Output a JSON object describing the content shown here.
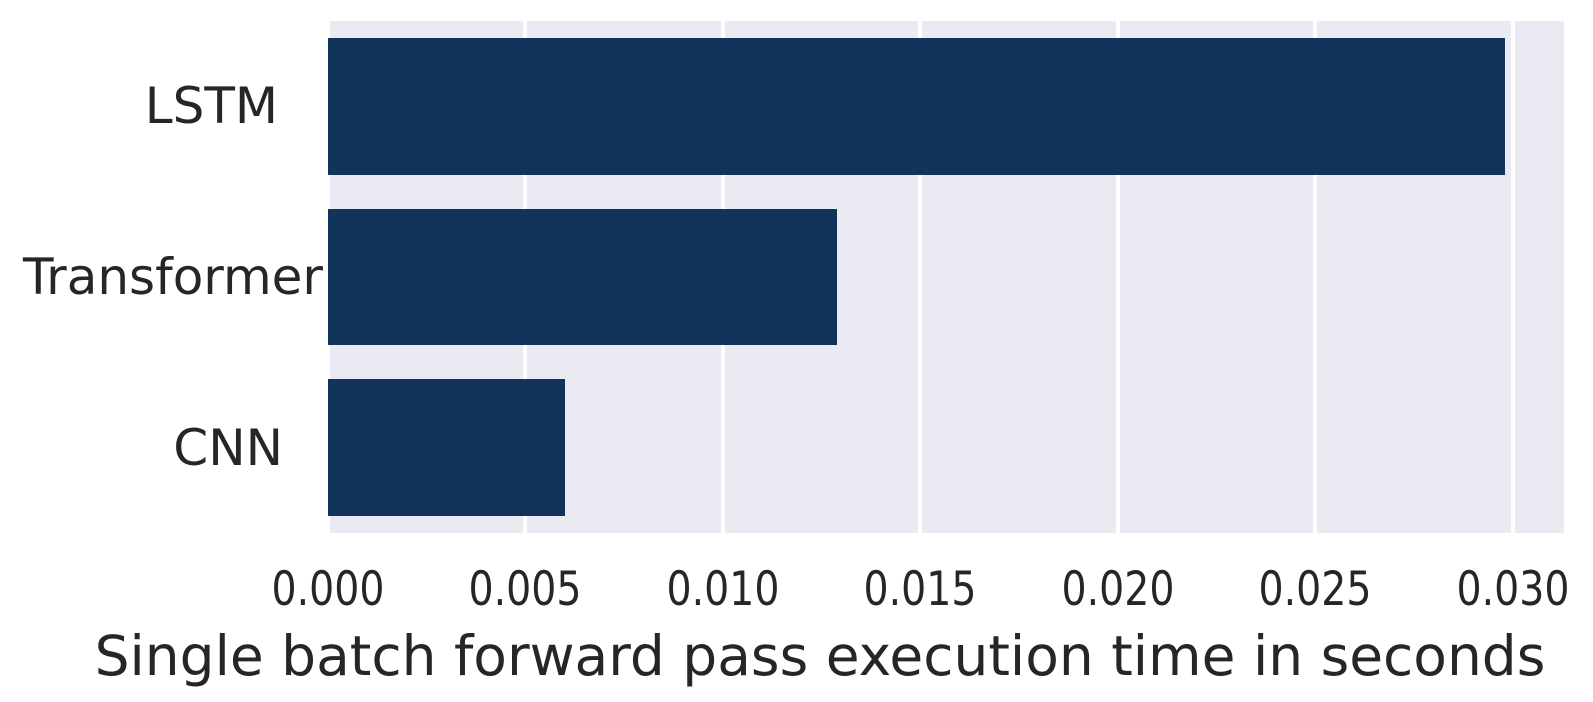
{
  "chart_data": {
    "type": "bar",
    "orientation": "horizontal",
    "title": "",
    "xlabel": "Single batch forward pass execution time in seconds",
    "ylabel": "",
    "categories": [
      "LSTM",
      "Transformer",
      "CNN"
    ],
    "values": [
      0.0298,
      0.0129,
      0.006
    ],
    "xlim": [
      0,
      0.0313
    ],
    "xticks": [
      0,
      0.005,
      0.01,
      0.015,
      0.02,
      0.025,
      0.03
    ],
    "xtick_labels": [
      "0.000",
      "0.005",
      "0.010",
      "0.015",
      "0.020",
      "0.025",
      "0.030"
    ],
    "grid": true,
    "grid_axis": "x",
    "legend": false,
    "bar_height_fraction": 0.8
  },
  "style": {
    "bar_color": "#11355a",
    "plot_background": "#eaeaf2",
    "grid_color": "#ffffff",
    "text_color": "#262626",
    "figure_background": "#ffffff"
  }
}
